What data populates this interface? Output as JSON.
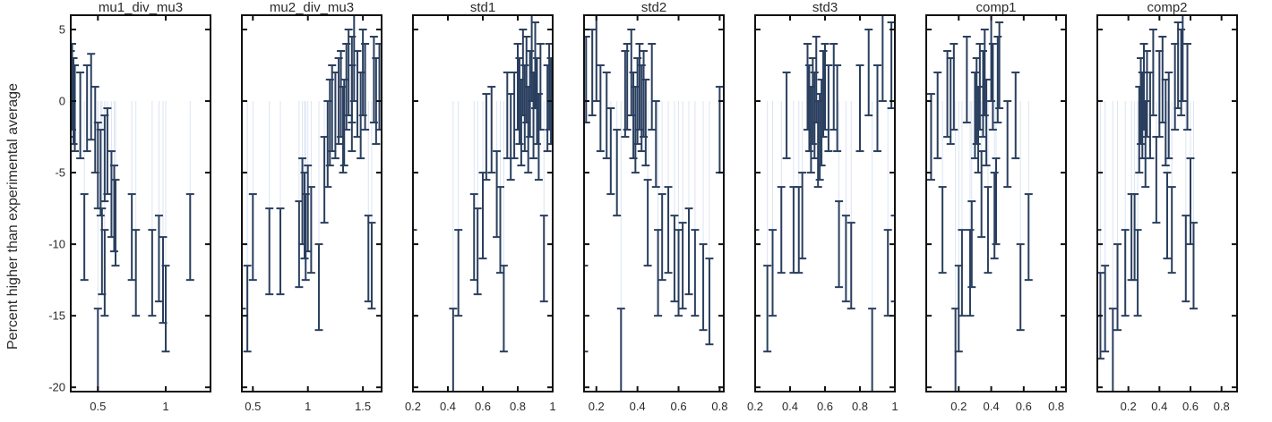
{
  "chart_data": {
    "type": "scatter",
    "ylabel": "Percent higher than experimental average",
    "ylim": [
      -20.3,
      6
    ],
    "yticks": [
      5,
      0,
      -5,
      -10,
      -15,
      -20
    ],
    "error_bar_color": "#2a3f5f",
    "stem_color": "#dce4f2",
    "panels": [
      {
        "title": "mu1_div_mu3",
        "xlim": [
          0.3,
          1.33
        ],
        "xticks": [
          0.5,
          1
        ],
        "points": [
          [
            0.3,
            0.5
          ],
          [
            0.31,
            1.0
          ],
          [
            0.32,
            0.0
          ],
          [
            0.33,
            -0.5
          ],
          [
            0.37,
            -1.0
          ],
          [
            0.42,
            -0.5
          ],
          [
            0.45,
            0.3
          ],
          [
            0.48,
            -2.0
          ],
          [
            0.5,
            -4.5
          ],
          [
            0.52,
            -5.0
          ],
          [
            0.55,
            -4.0
          ],
          [
            0.57,
            -3.5
          ],
          [
            0.6,
            -6.5
          ],
          [
            0.62,
            -7.5
          ],
          [
            0.4,
            -9.5
          ],
          [
            0.53,
            -10.5
          ],
          [
            0.55,
            -12.0
          ],
          [
            0.63,
            -8.5
          ],
          [
            0.75,
            -9.5
          ],
          [
            0.78,
            -12.0
          ],
          [
            0.9,
            -12.0
          ],
          [
            0.95,
            -11.0
          ],
          [
            0.98,
            -12.5
          ],
          [
            1.0,
            -14.5
          ],
          [
            1.18,
            -9.5
          ],
          [
            0.5,
            -17.5
          ]
        ]
      },
      {
        "title": "mu2_div_mu3",
        "xlim": [
          0.4,
          1.67
        ],
        "xticks": [
          0.5,
          1,
          1.5
        ],
        "points": [
          [
            0.4,
            -17.5
          ],
          [
            0.45,
            -14.5
          ],
          [
            0.5,
            -9.5
          ],
          [
            0.65,
            -10.5
          ],
          [
            0.75,
            -10.5
          ],
          [
            0.92,
            -10.0
          ],
          [
            0.95,
            -7.0
          ],
          [
            0.97,
            -8.0
          ],
          [
            0.98,
            -9.5
          ],
          [
            1.0,
            -7.5
          ],
          [
            1.03,
            -9.0
          ],
          [
            1.1,
            -13.0
          ],
          [
            1.15,
            -5.5
          ],
          [
            1.18,
            -3.0
          ],
          [
            1.2,
            -1.5
          ],
          [
            1.22,
            -0.5
          ],
          [
            1.25,
            -1.0
          ],
          [
            1.28,
            0.0
          ],
          [
            1.3,
            0.5
          ],
          [
            1.32,
            -2.0
          ],
          [
            1.35,
            1.0
          ],
          [
            1.37,
            2.0
          ],
          [
            1.4,
            1.5
          ],
          [
            1.42,
            3.0
          ],
          [
            1.45,
            0.5
          ],
          [
            1.48,
            -1.0
          ],
          [
            1.5,
            2.0
          ],
          [
            1.52,
            1.0
          ],
          [
            1.55,
            -11.0
          ],
          [
            1.58,
            -11.5
          ],
          [
            1.6,
            1.5
          ],
          [
            1.62,
            0.0
          ],
          [
            1.65,
            1.0
          ],
          [
            1.4,
            -0.5
          ],
          [
            1.33,
            -1.5
          ]
        ]
      },
      {
        "title": "std1",
        "xlim": [
          0.2,
          1.0
        ],
        "xticks": [
          0.2,
          0.4,
          0.6,
          0.8,
          1
        ],
        "points": [
          [
            0.2,
            -12.0
          ],
          [
            0.43,
            -17.5
          ],
          [
            0.46,
            -12.0
          ],
          [
            0.55,
            -9.5
          ],
          [
            0.57,
            -10.5
          ],
          [
            0.6,
            -8.0
          ],
          [
            0.62,
            -2.5
          ],
          [
            0.65,
            -2.0
          ],
          [
            0.68,
            -6.5
          ],
          [
            0.7,
            -9.0
          ],
          [
            0.72,
            -14.5
          ],
          [
            0.74,
            -1.0
          ],
          [
            0.76,
            -2.5
          ],
          [
            0.78,
            -1.0
          ],
          [
            0.8,
            1.0
          ],
          [
            0.81,
            0.0
          ],
          [
            0.82,
            -1.5
          ],
          [
            0.83,
            2.0
          ],
          [
            0.84,
            -0.5
          ],
          [
            0.85,
            1.5
          ],
          [
            0.86,
            -2.0
          ],
          [
            0.87,
            0.5
          ],
          [
            0.88,
            3.0
          ],
          [
            0.89,
            -1.0
          ],
          [
            0.9,
            2.5
          ],
          [
            0.91,
            0.0
          ],
          [
            0.92,
            -2.5
          ],
          [
            0.93,
            1.0
          ],
          [
            0.95,
            -11.0
          ],
          [
            0.97,
            -0.5
          ],
          [
            0.98,
            1.0
          ],
          [
            0.99,
            0.0
          ]
        ]
      },
      {
        "title": "std2",
        "xlim": [
          0.14,
          0.82
        ],
        "xticks": [
          0.2,
          0.4,
          0.6,
          0.8
        ],
        "points": [
          [
            0.14,
            -14.5
          ],
          [
            0.15,
            1.5
          ],
          [
            0.18,
            2.0
          ],
          [
            0.2,
            3.0
          ],
          [
            0.22,
            -0.5
          ],
          [
            0.25,
            -1.0
          ],
          [
            0.27,
            -3.5
          ],
          [
            0.3,
            -5.0
          ],
          [
            0.32,
            -17.5
          ],
          [
            0.34,
            0.5
          ],
          [
            0.35,
            1.0
          ],
          [
            0.37,
            2.0
          ],
          [
            0.38,
            -1.0
          ],
          [
            0.39,
            -2.0
          ],
          [
            0.4,
            0.0
          ],
          [
            0.41,
            1.0
          ],
          [
            0.42,
            -0.5
          ],
          [
            0.43,
            0.5
          ],
          [
            0.44,
            -1.5
          ],
          [
            0.45,
            -8.5
          ],
          [
            0.47,
            1.0
          ],
          [
            0.49,
            -3.0
          ],
          [
            0.5,
            -12.0
          ],
          [
            0.52,
            -9.5
          ],
          [
            0.55,
            -9.0
          ],
          [
            0.58,
            -11.0
          ],
          [
            0.6,
            -12.0
          ],
          [
            0.62,
            -11.5
          ],
          [
            0.65,
            -10.5
          ],
          [
            0.68,
            -12.0
          ],
          [
            0.72,
            -13.0
          ],
          [
            0.75,
            -14.0
          ],
          [
            0.8,
            -2.0
          ]
        ]
      },
      {
        "title": "std3",
        "xlim": [
          0.2,
          1.0
        ],
        "xticks": [
          0.2,
          0.4,
          0.6,
          0.8,
          1
        ],
        "points": [
          [
            0.2,
            -12.0
          ],
          [
            0.27,
            -14.5
          ],
          [
            0.3,
            -12.0
          ],
          [
            0.35,
            -9.0
          ],
          [
            0.38,
            -1.0
          ],
          [
            0.42,
            -9.0
          ],
          [
            0.45,
            -9.0
          ],
          [
            0.47,
            -8.0
          ],
          [
            0.5,
            1.0
          ],
          [
            0.51,
            -0.5
          ],
          [
            0.52,
            -2.0
          ],
          [
            0.53,
            0.0
          ],
          [
            0.54,
            -1.0
          ],
          [
            0.55,
            1.5
          ],
          [
            0.56,
            -3.0
          ],
          [
            0.57,
            -2.5
          ],
          [
            0.58,
            -1.5
          ],
          [
            0.59,
            0.5
          ],
          [
            0.6,
            1.0
          ],
          [
            0.62,
            -0.5
          ],
          [
            0.65,
            1.0
          ],
          [
            0.67,
            -0.5
          ],
          [
            0.68,
            -10.0
          ],
          [
            0.72,
            -11.0
          ],
          [
            0.75,
            -11.5
          ],
          [
            0.8,
            -0.5
          ],
          [
            0.85,
            2.0
          ],
          [
            0.87,
            -17.5
          ],
          [
            0.9,
            -0.5
          ],
          [
            0.93,
            3.0
          ],
          [
            0.96,
            -12.0
          ],
          [
            0.98,
            2.5
          ],
          [
            1.0,
            -11.0
          ]
        ]
      },
      {
        "title": "comp1",
        "xlim": [
          0.0,
          0.86
        ],
        "xticks": [
          0.2,
          0.4,
          0.6,
          0.8
        ],
        "points": [
          [
            0.03,
            -2.5
          ],
          [
            0.07,
            -1.0
          ],
          [
            0.1,
            -9.0
          ],
          [
            0.13,
            0.5
          ],
          [
            0.15,
            0.0
          ],
          [
            0.17,
            1.0
          ],
          [
            0.18,
            -17.5
          ],
          [
            0.2,
            -14.5
          ],
          [
            0.22,
            -12.0
          ],
          [
            0.25,
            1.5
          ],
          [
            0.27,
            -12.0
          ],
          [
            0.28,
            -10.0
          ],
          [
            0.3,
            -1.0
          ],
          [
            0.31,
            0.0
          ],
          [
            0.32,
            -2.0
          ],
          [
            0.33,
            1.0
          ],
          [
            0.34,
            -6.5
          ],
          [
            0.35,
            0.5
          ],
          [
            0.36,
            2.0
          ],
          [
            0.37,
            -1.5
          ],
          [
            0.38,
            -9.0
          ],
          [
            0.4,
            3.0
          ],
          [
            0.41,
            1.0
          ],
          [
            0.42,
            -8.0
          ],
          [
            0.43,
            -7.0
          ],
          [
            0.44,
            1.5
          ],
          [
            0.45,
            2.5
          ],
          [
            0.5,
            -3.0
          ],
          [
            0.55,
            -1.0
          ],
          [
            0.58,
            -13.0
          ],
          [
            0.63,
            -9.5
          ]
        ]
      },
      {
        "title": "comp2",
        "xlim": [
          0.0,
          0.9
        ],
        "xticks": [
          0.2,
          0.4,
          0.6,
          0.8
        ],
        "points": [
          [
            0.0,
            -12.0
          ],
          [
            0.02,
            -15.0
          ],
          [
            0.05,
            -14.5
          ],
          [
            0.1,
            -17.5
          ],
          [
            0.13,
            -13.0
          ],
          [
            0.18,
            -12.0
          ],
          [
            0.22,
            -9.5
          ],
          [
            0.24,
            -9.5
          ],
          [
            0.26,
            -12.0
          ],
          [
            0.27,
            -2.0
          ],
          [
            0.28,
            0.0
          ],
          [
            0.29,
            -1.0
          ],
          [
            0.3,
            1.0
          ],
          [
            0.31,
            -3.0
          ],
          [
            0.32,
            0.5
          ],
          [
            0.34,
            -1.0
          ],
          [
            0.36,
            2.0
          ],
          [
            0.38,
            -5.5
          ],
          [
            0.4,
            0.5
          ],
          [
            0.42,
            1.5
          ],
          [
            0.44,
            -1.5
          ],
          [
            0.45,
            -8.0
          ],
          [
            0.46,
            -1.0
          ],
          [
            0.48,
            -9.0
          ],
          [
            0.5,
            1.0
          ],
          [
            0.52,
            2.5
          ],
          [
            0.54,
            2.0
          ],
          [
            0.55,
            3.0
          ],
          [
            0.57,
            -11.0
          ],
          [
            0.58,
            1.0
          ],
          [
            0.6,
            -7.0
          ],
          [
            0.62,
            -11.5
          ]
        ]
      }
    ]
  }
}
